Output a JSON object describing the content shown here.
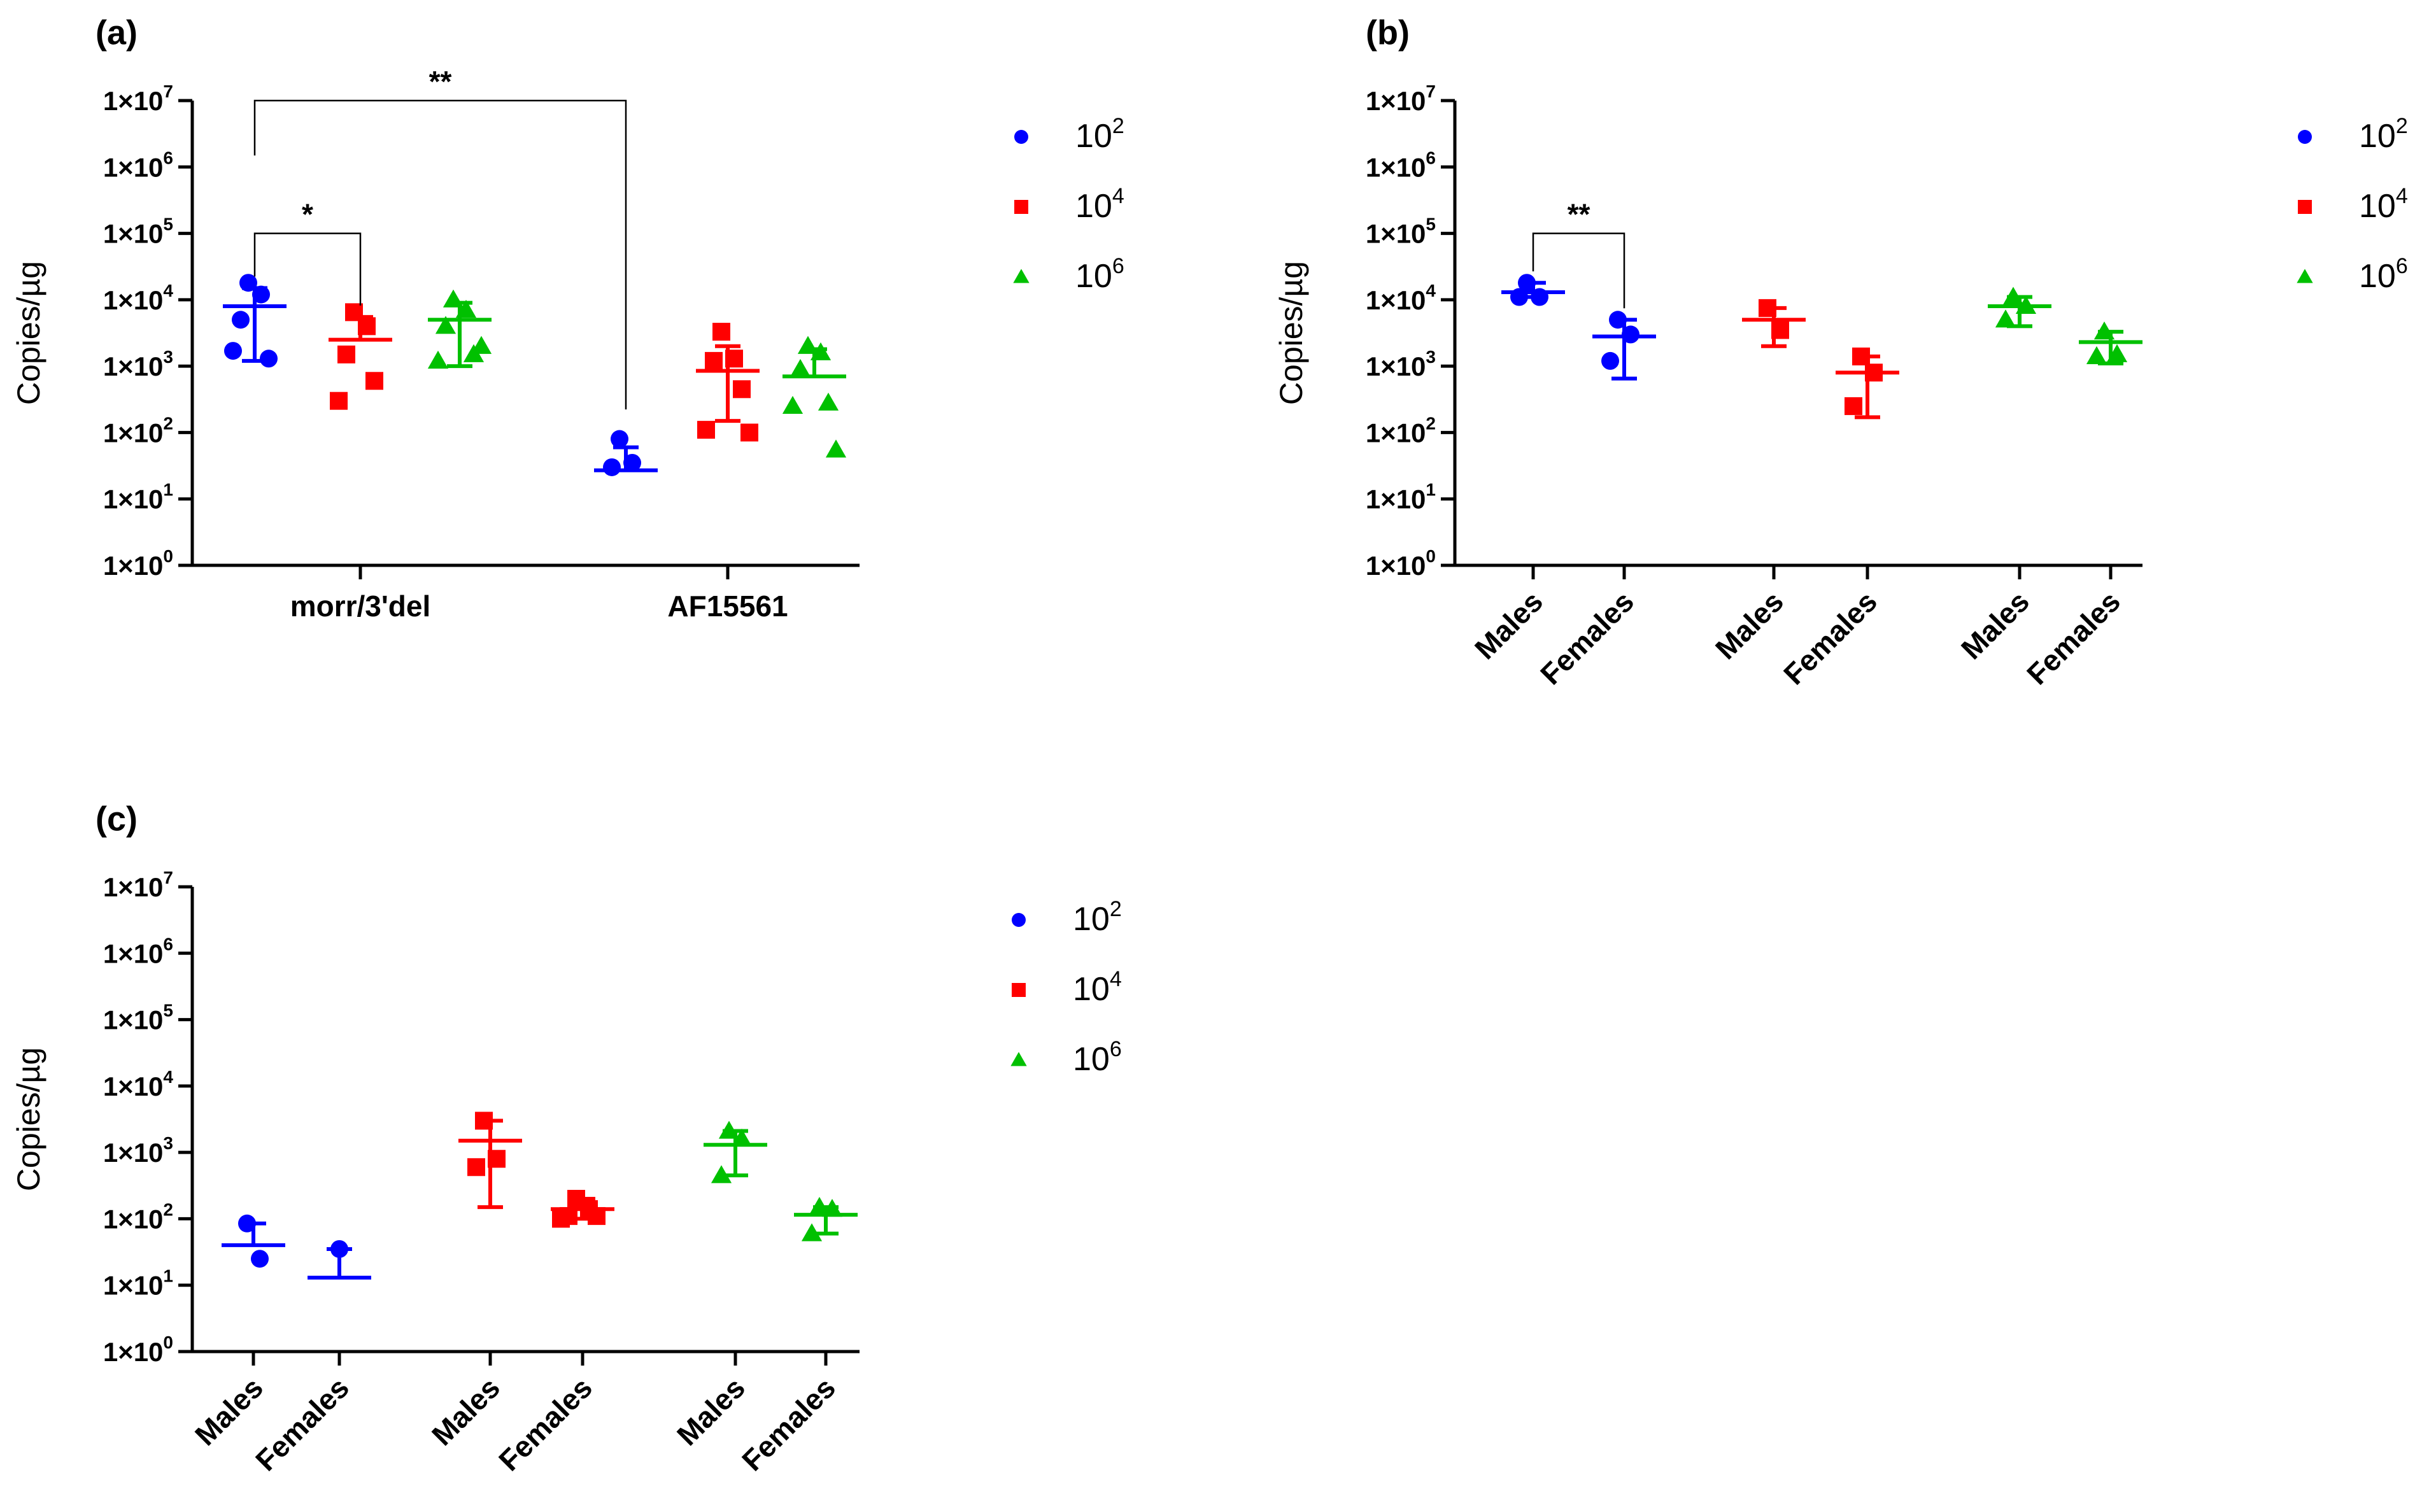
{
  "colors": {
    "blue": "#0000ff",
    "red": "#ff0000",
    "green": "#00c000",
    "axis": "#000000"
  },
  "legend_labels": [
    {
      "base": "10",
      "exp": "2",
      "shape": "circle",
      "color": "#0000ff"
    },
    {
      "base": "10",
      "exp": "4",
      "shape": "square",
      "color": "#ff0000"
    },
    {
      "base": "10",
      "exp": "6",
      "shape": "triangle",
      "color": "#00c000"
    }
  ],
  "chart_data": [
    {
      "panel": "(a)",
      "type": "scatter",
      "yscale": "log",
      "ylim": [
        1,
        10000000
      ],
      "ylabel": "Copies/µg",
      "yticks": [
        {
          "base": "1×10",
          "exp": "0"
        },
        {
          "base": "1×10",
          "exp": "1"
        },
        {
          "base": "1×10",
          "exp": "2"
        },
        {
          "base": "1×10",
          "exp": "3"
        },
        {
          "base": "1×10",
          "exp": "4"
        },
        {
          "base": "1×10",
          "exp": "5"
        },
        {
          "base": "1×10",
          "exp": "6"
        },
        {
          "base": "1×10",
          "exp": "7"
        }
      ],
      "categories": [
        "morr/3'del",
        "AF15561"
      ],
      "xlabel_rotated": false,
      "groups": [
        {
          "x": 0,
          "series": "10^2",
          "points": [
            18000,
            12000,
            5000,
            1300,
            1700
          ],
          "mean": 8000,
          "err_low": 1200,
          "err_high": 15000
        },
        {
          "x": 1,
          "series": "10^4",
          "points": [
            6500,
            4000,
            1500,
            600,
            300
          ],
          "mean": 2500,
          "err_low": 2500,
          "err_high": 5500
        },
        {
          "x": 2,
          "series": "10^6",
          "points": [
            10000,
            7000,
            4000,
            1500,
            1200,
            2000
          ],
          "mean": 5000,
          "err_low": 1000,
          "err_high": 9000
        },
        {
          "x": 4,
          "series": "10^2",
          "points": [
            80,
            35,
            30
          ],
          "mean": 27,
          "err_low": 27,
          "err_high": 60
        },
        {
          "x": 5,
          "series": "10^4",
          "points": [
            3300,
            1300,
            1200,
            450,
            110,
            100
          ],
          "mean": 850,
          "err_low": 150,
          "err_high": 2000
        },
        {
          "x": 6,
          "series": "10^6",
          "points": [
            2000,
            1600,
            900,
            280,
            250,
            55
          ],
          "mean": 700,
          "err_low": 700,
          "err_high": 1800
        }
      ],
      "category_ticks": [
        1,
        5
      ],
      "annotations": [
        {
          "x1": 0,
          "x2": 1,
          "level": 100000,
          "y1": 15000,
          "y2": 5500,
          "label": "*"
        },
        {
          "x1": 0,
          "x2": 4,
          "level": 10000000,
          "y1": 1000000,
          "y2": 150,
          "label": "**"
        }
      ]
    },
    {
      "panel": "(b)",
      "type": "scatter",
      "yscale": "log",
      "ylim": [
        1,
        10000000
      ],
      "ylabel": "Copies/µg",
      "yticks": [
        {
          "base": "1×10",
          "exp": "0"
        },
        {
          "base": "1×10",
          "exp": "1"
        },
        {
          "base": "1×10",
          "exp": "2"
        },
        {
          "base": "1×10",
          "exp": "3"
        },
        {
          "base": "1×10",
          "exp": "4"
        },
        {
          "base": "1×10",
          "exp": "5"
        },
        {
          "base": "1×10",
          "exp": "6"
        },
        {
          "base": "1×10",
          "exp": "7"
        }
      ],
      "categories": [
        "Males",
        "Females",
        "Males",
        "Females",
        "Males",
        "Females"
      ],
      "xlabel_rotated": true,
      "groups": [
        {
          "x": 0,
          "series": "10^2",
          "points": [
            18000,
            11000,
            11000
          ],
          "mean": 13000,
          "err_low": 11000,
          "err_high": 18000
        },
        {
          "x": 1,
          "series": "10^2",
          "points": [
            5000,
            3000,
            1200
          ],
          "mean": 2800,
          "err_low": 650,
          "err_high": 5000
        },
        {
          "x": 2,
          "series": "10^4",
          "points": [
            7500,
            3500
          ],
          "mean": 5000,
          "err_low": 2000,
          "err_high": 7500
        },
        {
          "x": 3,
          "series": "10^4",
          "points": [
            1400,
            800,
            250
          ],
          "mean": 800,
          "err_low": 170,
          "err_high": 1400
        },
        {
          "x": 4,
          "series": "10^6",
          "points": [
            11000,
            8000,
            5000
          ],
          "mean": 8000,
          "err_low": 4000,
          "err_high": 11000
        },
        {
          "x": 5,
          "series": "10^6",
          "points": [
            3300,
            1500,
            1400
          ],
          "mean": 2300,
          "err_low": 1100,
          "err_high": 3300
        }
      ],
      "category_ticks": [
        0,
        1,
        2,
        3,
        4,
        5
      ],
      "annotations": [
        {
          "x1": 0,
          "x2": 1,
          "level": 100000,
          "y1": 18000,
          "y2": 5000,
          "label": "**"
        }
      ]
    },
    {
      "panel": "(c)",
      "type": "scatter",
      "yscale": "log",
      "ylim": [
        1,
        10000000
      ],
      "ylabel": "Copies/µg",
      "yticks": [
        {
          "base": "1×10",
          "exp": "0"
        },
        {
          "base": "1×10",
          "exp": "1"
        },
        {
          "base": "1×10",
          "exp": "2"
        },
        {
          "base": "1×10",
          "exp": "3"
        },
        {
          "base": "1×10",
          "exp": "4"
        },
        {
          "base": "1×10",
          "exp": "5"
        },
        {
          "base": "1×10",
          "exp": "6"
        },
        {
          "base": "1×10",
          "exp": "7"
        }
      ],
      "categories": [
        "Males",
        "Females",
        "Males",
        "Females",
        "Males",
        "Females"
      ],
      "xlabel_rotated": true,
      "groups": [
        {
          "x": 0,
          "series": "10^2",
          "points": [
            85,
            25
          ],
          "mean": 40,
          "err_low": 40,
          "err_high": 85
        },
        {
          "x": 1,
          "series": "10^2",
          "points": [
            35
          ],
          "mean": 13,
          "err_low": 13,
          "err_high": 35
        },
        {
          "x": 2,
          "series": "10^4",
          "points": [
            3000,
            800,
            600
          ],
          "mean": 1500,
          "err_low": 150,
          "err_high": 3000
        },
        {
          "x": 3,
          "series": "10^4",
          "points": [
            200,
            140,
            110,
            110,
            100
          ],
          "mean": 140,
          "err_low": 100,
          "err_high": 200
        },
        {
          "x": 4,
          "series": "10^6",
          "points": [
            2100,
            1600,
            450
          ],
          "mean": 1300,
          "err_low": 450,
          "err_high": 2100
        },
        {
          "x": 5,
          "series": "10^6",
          "points": [
            150,
            140,
            60
          ],
          "mean": 115,
          "err_low": 60,
          "err_high": 150
        }
      ],
      "category_ticks": [
        0,
        1,
        2,
        3,
        4,
        5
      ],
      "annotations": []
    }
  ]
}
